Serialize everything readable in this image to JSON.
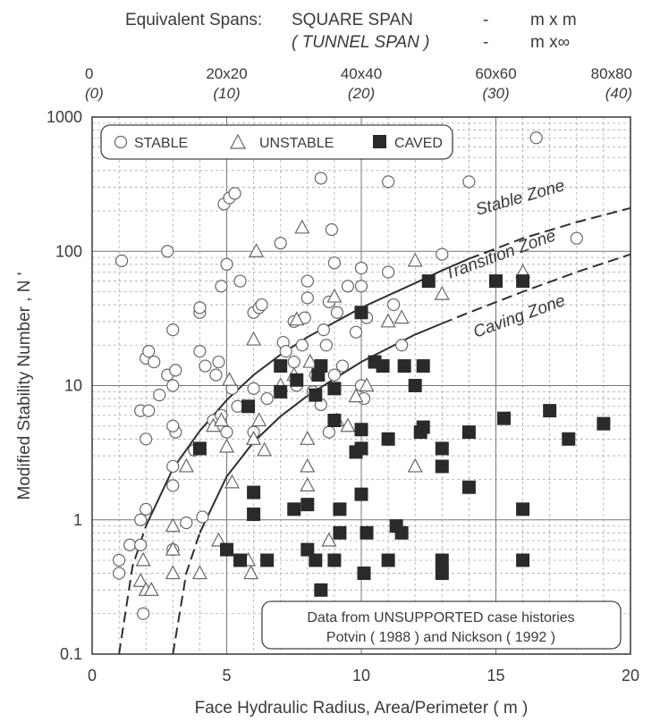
{
  "chart_data": {
    "type": "scatter",
    "title": "",
    "top_heading": {
      "line1_left": "Equivalent Spans:",
      "line1_mid": "SQUARE SPAN",
      "dash": "-",
      "line1_right": "m x m",
      "line2_mid": "( TUNNEL SPAN )",
      "line2_right": "m x∞"
    },
    "xlabel": "Face Hydraulic Radius, Area/Perimeter ( m )",
    "ylabel": "Modified Stability Number , N '",
    "xlim": [
      0,
      20
    ],
    "ylim": [
      0.1,
      1000
    ],
    "y_scale": "log",
    "grid": true,
    "x_ticks": [
      0,
      5,
      10,
      15,
      20
    ],
    "x_tick_labels": [
      "0",
      "5",
      "10",
      "15",
      "20"
    ],
    "y_ticks": [
      0.1,
      1,
      10,
      100,
      1000
    ],
    "y_tick_labels": [
      "0.1",
      "1",
      "10",
      "100",
      "1000"
    ],
    "top_axis": {
      "positions": [
        0,
        5,
        10,
        15,
        20
      ],
      "labels": [
        "0",
        "20x20",
        "40x40",
        "60x60",
        "80x80"
      ],
      "tunnel_labels": [
        "(0)",
        "(10)",
        "(20)",
        "(30)",
        "(40)"
      ]
    },
    "legend": {
      "placement": "top-left",
      "entries": [
        {
          "marker": "circle",
          "label": "STABLE"
        },
        {
          "marker": "triangle",
          "label": "UNSTABLE"
        },
        {
          "marker": "square",
          "label": "CAVED"
        }
      ]
    },
    "zones": [
      "Stable Zone",
      "Transition Zone",
      "Caving Zone"
    ],
    "note_line1": "Data from UNSUPPORTED case histories",
    "note_line2": "Potvin ( 1988 ) and Nickson ( 1992 )",
    "boundaries": [
      {
        "name": "stable-transition",
        "x": [
          1.0,
          1.5,
          2,
          3,
          4,
          5,
          6,
          7,
          8,
          10,
          12,
          13,
          14,
          16,
          18,
          20
        ],
        "y": [
          0.1,
          0.45,
          0.9,
          2.4,
          4.6,
          7.8,
          12,
          17,
          23,
          38,
          58,
          72,
          88,
          125,
          165,
          210
        ],
        "dashed_from_x": 14
      },
      {
        "name": "transition-caving",
        "x": [
          3.0,
          3.5,
          4,
          5,
          6,
          7,
          8,
          10,
          12,
          13,
          14,
          16,
          18,
          20
        ],
        "y": [
          0.1,
          0.4,
          0.8,
          2.1,
          3.8,
          5.9,
          8.4,
          15,
          24,
          29,
          35,
          50,
          70,
          95
        ],
        "dashed_from_x": 13
      }
    ],
    "series": [
      {
        "name": "STABLE",
        "marker": "circle",
        "points": [
          [
            1.1,
            85
          ],
          [
            2.8,
            100
          ],
          [
            1.0,
            0.5
          ],
          [
            1.0,
            0.4
          ],
          [
            1.4,
            0.65
          ],
          [
            1.8,
            0.65
          ],
          [
            1.8,
            1.0
          ],
          [
            1.9,
            0.2
          ],
          [
            1.8,
            6.5
          ],
          [
            2.0,
            1.2
          ],
          [
            2.0,
            4.0
          ],
          [
            2.1,
            6.5
          ],
          [
            2.0,
            16
          ],
          [
            2.1,
            18
          ],
          [
            2.3,
            15
          ],
          [
            2.5,
            8.5
          ],
          [
            2.8,
            12
          ],
          [
            3.0,
            10
          ],
          [
            3.0,
            26
          ],
          [
            3.1,
            13
          ],
          [
            3.0,
            0.6
          ],
          [
            3.0,
            1.8
          ],
          [
            3.0,
            2.5
          ],
          [
            3.1,
            4.5
          ],
          [
            3.0,
            5.0
          ],
          [
            3.5,
            0.95
          ],
          [
            3.8,
            3.3
          ],
          [
            4.0,
            18
          ],
          [
            4.0,
            35
          ],
          [
            4.0,
            38
          ],
          [
            4.2,
            14
          ],
          [
            4.1,
            1.05
          ],
          [
            4.5,
            5.5
          ],
          [
            4.6,
            12
          ],
          [
            4.7,
            15
          ],
          [
            4.8,
            55
          ],
          [
            4.8,
            6.0
          ],
          [
            5.0,
            4.5
          ],
          [
            4.9,
            225
          ],
          [
            5.0,
            80
          ],
          [
            5.1,
            250
          ],
          [
            5.3,
            270
          ],
          [
            5.2,
            9.5
          ],
          [
            5.4,
            7.0
          ],
          [
            5.5,
            60
          ],
          [
            6.0,
            9.5
          ],
          [
            6.0,
            35
          ],
          [
            6.2,
            38
          ],
          [
            6.3,
            40
          ],
          [
            6.0,
            4.5
          ],
          [
            6.5,
            8.0
          ],
          [
            7.0,
            115
          ],
          [
            7.1,
            21
          ],
          [
            7.2,
            18
          ],
          [
            7.5,
            30
          ],
          [
            7.5,
            15
          ],
          [
            7.6,
            10
          ],
          [
            7.9,
            32
          ],
          [
            7.8,
            20
          ],
          [
            8.0,
            45
          ],
          [
            8.0,
            60
          ],
          [
            8.3,
            12
          ],
          [
            8.2,
            9.0
          ],
          [
            8.5,
            350
          ],
          [
            8.6,
            26
          ],
          [
            8.7,
            20
          ],
          [
            8.8,
            42
          ],
          [
            8.9,
            145
          ],
          [
            9.0,
            82
          ],
          [
            9.1,
            35
          ],
          [
            9.3,
            14
          ],
          [
            9.0,
            12
          ],
          [
            8.8,
            4.5
          ],
          [
            8.5,
            7.2
          ],
          [
            9.5,
            55
          ],
          [
            9.8,
            25
          ],
          [
            10.0,
            75
          ],
          [
            10.0,
            55
          ],
          [
            10.2,
            32
          ],
          [
            10.0,
            10
          ],
          [
            10.1,
            8.0
          ],
          [
            10.5,
            15
          ],
          [
            11.0,
            70
          ],
          [
            11.0,
            330
          ],
          [
            11.2,
            40
          ],
          [
            11.5,
            20
          ],
          [
            13.0,
            95
          ],
          [
            14.0,
            330
          ],
          [
            16.5,
            700
          ],
          [
            18.0,
            125
          ]
        ]
      },
      {
        "name": "UNSTABLE",
        "marker": "triangle",
        "points": [
          [
            1.8,
            0.35
          ],
          [
            1.9,
            0.5
          ],
          [
            2.0,
            0.3
          ],
          [
            2.2,
            0.3
          ],
          [
            3.0,
            0.4
          ],
          [
            3.0,
            0.6
          ],
          [
            3.0,
            0.9
          ],
          [
            3.5,
            2.5
          ],
          [
            4.0,
            0.4
          ],
          [
            4.5,
            5.0
          ],
          [
            4.7,
            0.7
          ],
          [
            4.8,
            5.5
          ],
          [
            5.0,
            3.5
          ],
          [
            5.1,
            11
          ],
          [
            5.2,
            1.9
          ],
          [
            5.8,
            0.5
          ],
          [
            5.9,
            0.4
          ],
          [
            6.0,
            4.0
          ],
          [
            6.0,
            22
          ],
          [
            6.1,
            100
          ],
          [
            6.2,
            5.5
          ],
          [
            6.4,
            3.3
          ],
          [
            7.0,
            10
          ],
          [
            7.5,
            12
          ],
          [
            7.6,
            31
          ],
          [
            7.8,
            150
          ],
          [
            8.0,
            1.8
          ],
          [
            8.0,
            2.5
          ],
          [
            8.0,
            4.0
          ],
          [
            8.1,
            15
          ],
          [
            8.8,
            0.7
          ],
          [
            9.0,
            46
          ],
          [
            9.1,
            5.5
          ],
          [
            9.5,
            5.0
          ],
          [
            9.8,
            8.3
          ],
          [
            10.2,
            10
          ],
          [
            11.0,
            30
          ],
          [
            11.5,
            32
          ],
          [
            12.0,
            2.5
          ],
          [
            12.0,
            85
          ],
          [
            13.0,
            48
          ],
          [
            16.0,
            70
          ]
        ]
      },
      {
        "name": "CAVED",
        "marker": "square",
        "points": [
          [
            4.0,
            3.4
          ],
          [
            5.0,
            0.6
          ],
          [
            5.5,
            0.5
          ],
          [
            5.8,
            7.0
          ],
          [
            6.0,
            1.6
          ],
          [
            6.0,
            1.1
          ],
          [
            6.5,
            0.5
          ],
          [
            7.0,
            14
          ],
          [
            7.0,
            9.0
          ],
          [
            7.5,
            1.2
          ],
          [
            7.6,
            11
          ],
          [
            8.0,
            0.6
          ],
          [
            8.0,
            1.3
          ],
          [
            8.3,
            0.5
          ],
          [
            8.3,
            8.5
          ],
          [
            8.4,
            12
          ],
          [
            8.5,
            14
          ],
          [
            8.5,
            0.3
          ],
          [
            9.0,
            9.5
          ],
          [
            9.0,
            5.5
          ],
          [
            9.2,
            0.8
          ],
          [
            9.2,
            1.2
          ],
          [
            9.0,
            0.5
          ],
          [
            9.8,
            3.2
          ],
          [
            10.0,
            35
          ],
          [
            10.0,
            4.7
          ],
          [
            10.0,
            3.4
          ],
          [
            10.0,
            1.55
          ],
          [
            10.2,
            0.8
          ],
          [
            10.1,
            0.4
          ],
          [
            10.5,
            15
          ],
          [
            10.8,
            14
          ],
          [
            11.0,
            4.0
          ],
          [
            11.0,
            0.5
          ],
          [
            11.3,
            0.9
          ],
          [
            11.5,
            0.8
          ],
          [
            11.6,
            14
          ],
          [
            12.0,
            10
          ],
          [
            12.2,
            4.5
          ],
          [
            12.3,
            4.9
          ],
          [
            12.3,
            14
          ],
          [
            12.5,
            60
          ],
          [
            13.0,
            3.4
          ],
          [
            13.0,
            2.5
          ],
          [
            13.0,
            0.5
          ],
          [
            13.0,
            0.4
          ],
          [
            14.0,
            4.5
          ],
          [
            14.0,
            1.75
          ],
          [
            15.0,
            60
          ],
          [
            16.0,
            60
          ],
          [
            15.3,
            5.7
          ],
          [
            16.0,
            1.2
          ],
          [
            16.0,
            0.5
          ],
          [
            17.0,
            6.5
          ],
          [
            17.7,
            4.0
          ],
          [
            19.0,
            5.2
          ]
        ]
      }
    ]
  }
}
